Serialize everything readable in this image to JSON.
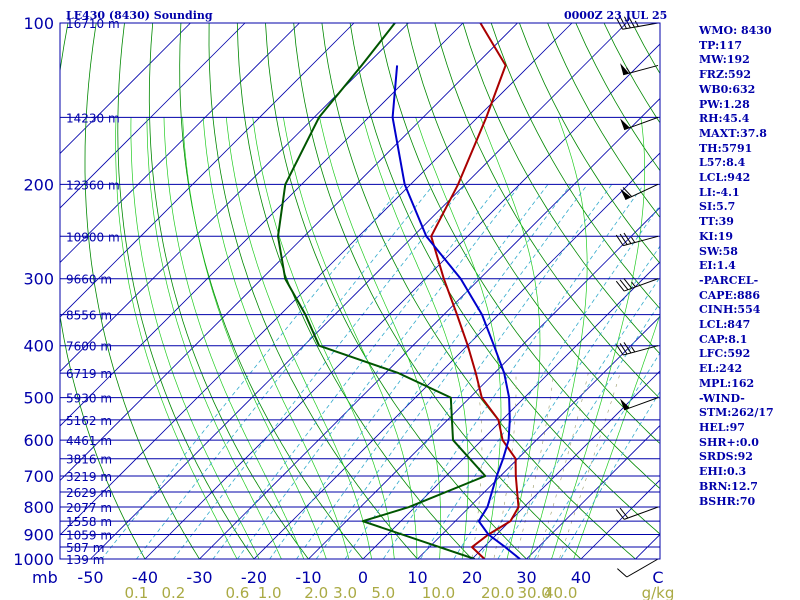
{
  "header": {
    "title": "LE430 (8430) Sounding",
    "time": "0000Z 23 JUL 25"
  },
  "indices": [
    "WMO: 8430",
    "TP:117",
    "MW:192",
    "FRZ:592",
    "WB0:632",
    "PW:1.28",
    "RH:45.4",
    "MAXT:37.8",
    "TH:5791",
    "L57:8.4",
    "LCL:942",
    "LI:-4.1",
    "SI:5.7",
    "TT:39",
    "KI:19",
    "SW:58",
    "EI:1.4",
    "-PARCEL-",
    "CAPE:886",
    "CINH:554",
    "LCL:847",
    "CAP:8.1",
    "LFC:592",
    "EL:242",
    "MPL:162",
    "-WIND-",
    "STM:262/17",
    "HEL:97",
    "SHR+:0.0",
    "SRDS:92",
    "EHI:0.3",
    "BRN:12.7",
    "BSHR:70"
  ],
  "colors": {
    "isobar": "#0000aa",
    "isotherm": "#0000aa",
    "dry_adiabat": "#008800",
    "moist_adiabat": "#22cc22",
    "mixing_ratio": "#33aacc",
    "temperature": "#aa0000",
    "dewpoint": "#005500",
    "parcel": "#0000cc",
    "mixing_label": "#aaaa44",
    "axis_text": "#0000aa"
  },
  "chart_data": {
    "type": "skew-t log-p sounding",
    "xlabel": "C",
    "ylabel": "mb",
    "pressure_levels_mb": [
      100,
      200,
      300,
      400,
      500,
      600,
      700,
      800,
      900,
      1000
    ],
    "temperature_ticks_c": [
      -50,
      -40,
      -30,
      -20,
      -10,
      0,
      10,
      20,
      30,
      40
    ],
    "mixing_ratio_labels": [
      "0.1",
      "0.2",
      "0.6",
      "1.0",
      "2.0",
      "3.0",
      "5.0",
      "10.0",
      "20.0",
      "30.0",
      "40.0",
      "g/kg"
    ],
    "mixing_ratio_values_gkg": [
      0.1,
      0.2,
      0.6,
      1.0,
      2.0,
      3.0,
      5.0,
      10.0,
      20.0,
      30.0,
      40.0
    ],
    "height_labels": [
      {
        "p": 100,
        "label": "16710 m"
      },
      {
        "p": 150,
        "label": "14230 m"
      },
      {
        "p": 200,
        "label": "12360 m"
      },
      {
        "p": 250,
        "label": "10900 m"
      },
      {
        "p": 300,
        "label": "9660 m"
      },
      {
        "p": 350,
        "label": "8556 m"
      },
      {
        "p": 400,
        "label": "7600 m"
      },
      {
        "p": 450,
        "label": "6719 m"
      },
      {
        "p": 500,
        "label": "5930 m"
      },
      {
        "p": 550,
        "label": "5162 m"
      },
      {
        "p": 600,
        "label": "4461 m"
      },
      {
        "p": 650,
        "label": "3816 m"
      },
      {
        "p": 700,
        "label": "3219 m"
      },
      {
        "p": 750,
        "label": "2629 m"
      },
      {
        "p": 800,
        "label": "2077 m"
      },
      {
        "p": 850,
        "label": "1558 m"
      },
      {
        "p": 900,
        "label": "1059 m"
      },
      {
        "p": 950,
        "label": "587 m"
      },
      {
        "p": 1000,
        "label": "139 m"
      }
    ],
    "series": [
      {
        "key": "temperature",
        "points": [
          {
            "p": 100,
            "t": -76.8
          },
          {
            "p": 120,
            "t": -64.4
          },
          {
            "p": 150,
            "t": -58.4
          },
          {
            "p": 200,
            "t": -51.3
          },
          {
            "p": 250,
            "t": -46.7
          },
          {
            "p": 300,
            "t": -36.6
          },
          {
            "p": 350,
            "t": -27.6
          },
          {
            "p": 400,
            "t": -19.9
          },
          {
            "p": 450,
            "t": -13.4
          },
          {
            "p": 500,
            "t": -7.8
          },
          {
            "p": 550,
            "t": -0.7
          },
          {
            "p": 600,
            "t": 3.8
          },
          {
            "p": 650,
            "t": 9.6
          },
          {
            "p": 700,
            "t": 12.8
          },
          {
            "p": 800,
            "t": 19.0
          },
          {
            "p": 850,
            "t": 20.1
          },
          {
            "p": 900,
            "t": 18.5
          },
          {
            "p": 950,
            "t": 17.8
          },
          {
            "p": 1000,
            "t": 22.3
          }
        ]
      },
      {
        "key": "dewpoint",
        "points": [
          {
            "p": 100,
            "t": -92.5
          },
          {
            "p": 120,
            "t": -90.8
          },
          {
            "p": 150,
            "t": -89.1
          },
          {
            "p": 200,
            "t": -83.0
          },
          {
            "p": 250,
            "t": -74.8
          },
          {
            "p": 300,
            "t": -65.7
          },
          {
            "p": 350,
            "t": -55.4
          },
          {
            "p": 400,
            "t": -47.2
          },
          {
            "p": 450,
            "t": -27.6
          },
          {
            "p": 500,
            "t": -13.5
          },
          {
            "p": 600,
            "t": -5.3
          },
          {
            "p": 700,
            "t": 7.2
          },
          {
            "p": 800,
            "t": -1.1
          },
          {
            "p": 850,
            "t": -7.0
          },
          {
            "p": 1000,
            "t": 20.5
          }
        ]
      },
      {
        "key": "parcel",
        "points": [
          {
            "p": 120,
            "t": -84.3
          },
          {
            "p": 150,
            "t": -75.6
          },
          {
            "p": 200,
            "t": -61.1
          },
          {
            "p": 250,
            "t": -47.6
          },
          {
            "p": 300,
            "t": -33.5
          },
          {
            "p": 350,
            "t": -23.0
          },
          {
            "p": 400,
            "t": -15.1
          },
          {
            "p": 450,
            "t": -8.2
          },
          {
            "p": 500,
            "t": -2.8
          },
          {
            "p": 550,
            "t": 1.4
          },
          {
            "p": 600,
            "t": 4.9
          },
          {
            "p": 650,
            "t": 7.3
          },
          {
            "p": 700,
            "t": 9.3
          },
          {
            "p": 800,
            "t": 13.3
          },
          {
            "p": 850,
            "t": 14.3
          },
          {
            "p": 900,
            "t": 18.5
          },
          {
            "p": 950,
            "t": 23.9
          },
          {
            "p": 1000,
            "t": 28.8
          }
        ]
      }
    ],
    "wind_barbs": [
      {
        "p": 100,
        "dir": 260,
        "kt": 45
      },
      {
        "p": 120,
        "dir": 255,
        "kt": 55
      },
      {
        "p": 150,
        "dir": 250,
        "kt": 50
      },
      {
        "p": 200,
        "dir": 245,
        "kt": 60
      },
      {
        "p": 250,
        "dir": 255,
        "kt": 35
      },
      {
        "p": 300,
        "dir": 250,
        "kt": 35
      },
      {
        "p": 400,
        "dir": 255,
        "kt": 35
      },
      {
        "p": 500,
        "dir": 250,
        "kt": 50
      },
      {
        "p": 800,
        "dir": 250,
        "kt": 20
      },
      {
        "p": 1000,
        "dir": 240,
        "kt": 10
      }
    ]
  }
}
